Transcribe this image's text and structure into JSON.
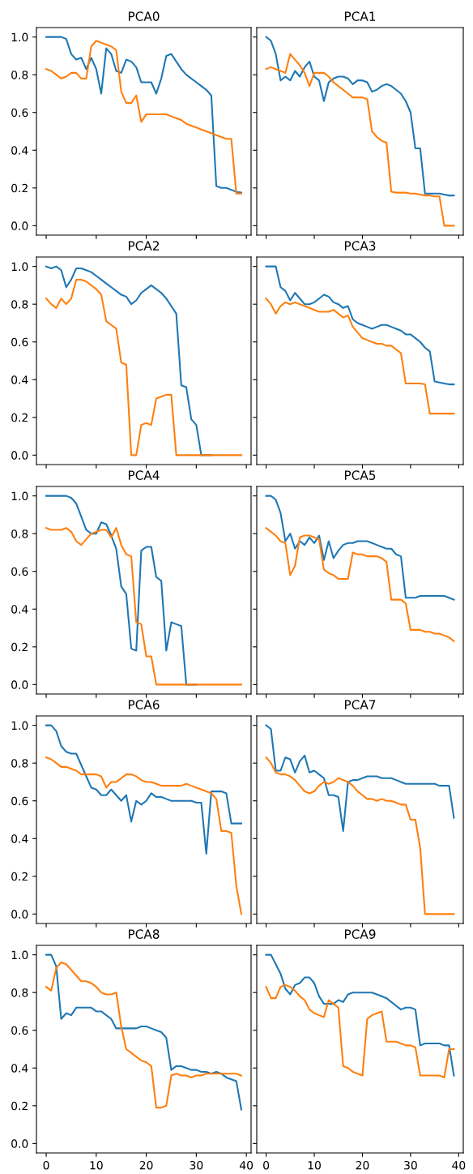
{
  "chart_data": [
    {
      "type": "line",
      "title": "PCA0",
      "xlim": [
        -1.95,
        40.95
      ],
      "ylim": [
        -0.05,
        1.05
      ],
      "xticks": [
        {
          "value": 0,
          "label": null
        },
        {
          "value": 10,
          "label": null
        },
        {
          "value": 20,
          "label": null
        },
        {
          "value": 30,
          "label": null
        },
        {
          "value": 40,
          "label": null
        }
      ],
      "yticks": [
        {
          "value": 0,
          "label": "0.0"
        },
        {
          "value": 0.2,
          "label": "0.2"
        },
        {
          "value": 0.4,
          "label": "0.4"
        },
        {
          "value": 0.6,
          "label": "0.6"
        },
        {
          "value": 0.8,
          "label": "0.8"
        },
        {
          "value": 1.0,
          "label": "1.0"
        }
      ],
      "tick_labels": "y",
      "grid": false,
      "x": [
        0,
        1,
        2,
        3,
        4,
        5,
        6,
        7,
        8,
        9,
        10,
        11,
        12,
        13,
        14,
        15,
        16,
        17,
        18,
        19,
        20,
        21,
        22,
        23,
        24,
        25,
        26,
        27,
        28,
        29,
        30,
        31,
        32,
        33,
        34,
        35,
        36,
        37,
        38,
        39
      ],
      "series": [
        {
          "color": "#1f77b4",
          "values": [
            1.0,
            1.0,
            1.0,
            1.0,
            0.99,
            0.91,
            0.88,
            0.89,
            0.83,
            0.89,
            0.83,
            0.7,
            0.94,
            0.91,
            0.82,
            0.81,
            0.88,
            0.87,
            0.84,
            0.76,
            0.76,
            0.76,
            0.7,
            0.78,
            0.9,
            0.91,
            0.87,
            0.83,
            0.8,
            0.78,
            0.76,
            0.74,
            0.72,
            0.69,
            0.21,
            0.2,
            0.2,
            0.19,
            0.18,
            0.175
          ]
        },
        {
          "color": "#ff7f0e",
          "values": [
            0.83,
            0.82,
            0.8,
            0.78,
            0.79,
            0.81,
            0.81,
            0.78,
            0.78,
            0.95,
            0.98,
            0.97,
            0.96,
            0.95,
            0.93,
            0.71,
            0.65,
            0.65,
            0.69,
            0.55,
            0.59,
            0.59,
            0.59,
            0.59,
            0.59,
            0.58,
            0.57,
            0.56,
            0.54,
            0.53,
            0.52,
            0.51,
            0.5,
            0.49,
            0.48,
            0.47,
            0.46,
            0.46,
            0.17,
            0.17
          ]
        }
      ]
    },
    {
      "type": "line",
      "title": "PCA1",
      "xlim": [
        -1.95,
        40.95
      ],
      "ylim": [
        -0.05,
        1.05
      ],
      "xticks": [
        {
          "value": 0,
          "label": null
        },
        {
          "value": 10,
          "label": null
        },
        {
          "value": 20,
          "label": null
        },
        {
          "value": 30,
          "label": null
        },
        {
          "value": 40,
          "label": null
        }
      ],
      "yticks": [
        {
          "value": 0,
          "label": null
        },
        {
          "value": 0.2,
          "label": null
        },
        {
          "value": 0.4,
          "label": null
        },
        {
          "value": 0.6,
          "label": null
        },
        {
          "value": 0.8,
          "label": null
        },
        {
          "value": 1.0,
          "label": null
        }
      ],
      "tick_labels": false,
      "grid": false,
      "x": [
        0,
        1,
        2,
        3,
        4,
        5,
        6,
        7,
        8,
        9,
        10,
        11,
        12,
        13,
        14,
        15,
        16,
        17,
        18,
        19,
        20,
        21,
        22,
        23,
        24,
        25,
        26,
        27,
        28,
        29,
        30,
        31,
        32,
        33,
        34,
        35,
        36,
        37,
        38,
        39
      ],
      "series": [
        {
          "color": "#1f77b4",
          "values": [
            1.0,
            0.98,
            0.91,
            0.77,
            0.79,
            0.77,
            0.82,
            0.79,
            0.84,
            0.87,
            0.79,
            0.77,
            0.66,
            0.76,
            0.78,
            0.79,
            0.79,
            0.78,
            0.75,
            0.77,
            0.77,
            0.76,
            0.71,
            0.72,
            0.74,
            0.75,
            0.74,
            0.72,
            0.7,
            0.66,
            0.6,
            0.41,
            0.41,
            0.17,
            0.17,
            0.17,
            0.17,
            0.165,
            0.16,
            0.16
          ]
        },
        {
          "color": "#ff7f0e",
          "values": [
            0.83,
            0.84,
            0.83,
            0.82,
            0.81,
            0.91,
            0.88,
            0.85,
            0.81,
            0.74,
            0.81,
            0.81,
            0.81,
            0.79,
            0.76,
            0.74,
            0.72,
            0.7,
            0.68,
            0.68,
            0.68,
            0.67,
            0.5,
            0.47,
            0.45,
            0.44,
            0.18,
            0.175,
            0.175,
            0.175,
            0.17,
            0.17,
            0.165,
            0.16,
            0.16,
            0.155,
            0.155,
            0.0,
            0.0,
            0.0
          ]
        }
      ]
    },
    {
      "type": "line",
      "title": "PCA2",
      "xlim": [
        -1.95,
        40.95
      ],
      "ylim": [
        -0.05,
        1.05
      ],
      "xticks": [
        {
          "value": 0,
          "label": null
        },
        {
          "value": 10,
          "label": null
        },
        {
          "value": 20,
          "label": null
        },
        {
          "value": 30,
          "label": null
        },
        {
          "value": 40,
          "label": null
        }
      ],
      "yticks": [
        {
          "value": 0,
          "label": "0.0"
        },
        {
          "value": 0.2,
          "label": "0.2"
        },
        {
          "value": 0.4,
          "label": "0.4"
        },
        {
          "value": 0.6,
          "label": "0.6"
        },
        {
          "value": 0.8,
          "label": "0.8"
        },
        {
          "value": 1.0,
          "label": "1.0"
        }
      ],
      "tick_labels": "y",
      "grid": false,
      "x": [
        0,
        1,
        2,
        3,
        4,
        5,
        6,
        7,
        8,
        9,
        10,
        11,
        12,
        13,
        14,
        15,
        16,
        17,
        18,
        19,
        20,
        21,
        22,
        23,
        24,
        25,
        26,
        27,
        28,
        29,
        30,
        31,
        32,
        33,
        34,
        35,
        36,
        37,
        38,
        39
      ],
      "series": [
        {
          "color": "#1f77b4",
          "values": [
            1.0,
            0.99,
            1.0,
            0.98,
            0.89,
            0.93,
            0.99,
            0.99,
            0.98,
            0.97,
            0.95,
            0.93,
            0.91,
            0.89,
            0.87,
            0.85,
            0.84,
            0.8,
            0.82,
            0.86,
            0.88,
            0.9,
            0.88,
            0.86,
            0.83,
            0.79,
            0.75,
            0.37,
            0.36,
            0.19,
            0.16,
            0.0,
            0.0,
            0.0,
            null,
            null,
            null,
            null,
            null,
            null
          ]
        },
        {
          "color": "#ff7f0e",
          "values": [
            0.83,
            0.8,
            0.78,
            0.83,
            0.8,
            0.83,
            0.93,
            0.93,
            0.92,
            0.9,
            0.88,
            0.85,
            0.71,
            0.69,
            0.67,
            0.49,
            0.48,
            0.0,
            0.0,
            0.16,
            0.17,
            0.16,
            0.3,
            0.31,
            0.32,
            0.32,
            0.0,
            0.0,
            0.0,
            0.0,
            0.0,
            0.0,
            0.0,
            0.0,
            0.0,
            0.0,
            0.0,
            0.0,
            0.0,
            0.0
          ]
        }
      ]
    },
    {
      "type": "line",
      "title": "PCA3",
      "xlim": [
        -1.95,
        40.95
      ],
      "ylim": [
        -0.05,
        1.05
      ],
      "xticks": [
        {
          "value": 0,
          "label": null
        },
        {
          "value": 10,
          "label": null
        },
        {
          "value": 20,
          "label": null
        },
        {
          "value": 30,
          "label": null
        },
        {
          "value": 40,
          "label": null
        }
      ],
      "yticks": [
        {
          "value": 0,
          "label": null
        },
        {
          "value": 0.2,
          "label": null
        },
        {
          "value": 0.4,
          "label": null
        },
        {
          "value": 0.6,
          "label": null
        },
        {
          "value": 0.8,
          "label": null
        },
        {
          "value": 1.0,
          "label": null
        }
      ],
      "tick_labels": false,
      "grid": false,
      "x": [
        0,
        1,
        2,
        3,
        4,
        5,
        6,
        7,
        8,
        9,
        10,
        11,
        12,
        13,
        14,
        15,
        16,
        17,
        18,
        19,
        20,
        21,
        22,
        23,
        24,
        25,
        26,
        27,
        28,
        29,
        30,
        31,
        32,
        33,
        34,
        35,
        36,
        37,
        38,
        39
      ],
      "series": [
        {
          "color": "#1f77b4",
          "values": [
            1.0,
            1.0,
            1.0,
            0.89,
            0.87,
            0.82,
            0.86,
            0.83,
            0.8,
            0.8,
            0.81,
            0.83,
            0.85,
            0.84,
            0.81,
            0.8,
            0.78,
            0.79,
            0.72,
            0.7,
            0.69,
            0.68,
            0.67,
            0.68,
            0.69,
            0.69,
            0.68,
            0.67,
            0.66,
            0.64,
            0.64,
            0.62,
            0.6,
            0.57,
            0.55,
            0.39,
            0.385,
            0.38,
            0.375,
            0.375
          ]
        },
        {
          "color": "#ff7f0e",
          "values": [
            0.83,
            0.8,
            0.75,
            0.79,
            0.81,
            0.8,
            0.81,
            0.8,
            0.79,
            0.78,
            0.77,
            0.76,
            0.76,
            0.76,
            0.77,
            0.75,
            0.73,
            0.74,
            0.68,
            0.65,
            0.62,
            0.61,
            0.6,
            0.59,
            0.59,
            0.58,
            0.58,
            0.56,
            0.54,
            0.38,
            0.38,
            0.38,
            0.38,
            0.375,
            0.22,
            0.22,
            0.22,
            0.22,
            0.22,
            0.22
          ]
        }
      ]
    },
    {
      "type": "line",
      "title": "PCA4",
      "xlim": [
        -1.95,
        40.95
      ],
      "ylim": [
        -0.05,
        1.05
      ],
      "xticks": [
        {
          "value": 0,
          "label": null
        },
        {
          "value": 10,
          "label": null
        },
        {
          "value": 20,
          "label": null
        },
        {
          "value": 30,
          "label": null
        },
        {
          "value": 40,
          "label": null
        }
      ],
      "yticks": [
        {
          "value": 0,
          "label": "0.0"
        },
        {
          "value": 0.2,
          "label": "0.2"
        },
        {
          "value": 0.4,
          "label": "0.4"
        },
        {
          "value": 0.6,
          "label": "0.6"
        },
        {
          "value": 0.8,
          "label": "0.8"
        },
        {
          "value": 1.0,
          "label": "1.0"
        }
      ],
      "tick_labels": "y",
      "grid": false,
      "x": [
        0,
        1,
        2,
        3,
        4,
        5,
        6,
        7,
        8,
        9,
        10,
        11,
        12,
        13,
        14,
        15,
        16,
        17,
        18,
        19,
        20,
        21,
        22,
        23,
        24,
        25,
        26,
        27,
        28,
        29,
        30,
        31,
        32,
        33,
        34,
        35,
        36,
        37,
        38,
        39
      ],
      "series": [
        {
          "color": "#1f77b4",
          "values": [
            1.0,
            1.0,
            1.0,
            1.0,
            1.0,
            0.99,
            0.96,
            0.89,
            0.82,
            0.8,
            0.8,
            0.86,
            0.85,
            0.79,
            0.72,
            0.52,
            0.48,
            0.19,
            0.18,
            0.71,
            0.73,
            0.73,
            0.57,
            0.55,
            0.18,
            0.33,
            0.32,
            0.31,
            0.0,
            0.0,
            0.0,
            null,
            null,
            null,
            null,
            null,
            null,
            null,
            null,
            null
          ]
        },
        {
          "color": "#ff7f0e",
          "values": [
            0.83,
            0.82,
            0.82,
            0.82,
            0.83,
            0.81,
            0.76,
            0.74,
            0.77,
            0.8,
            0.81,
            0.82,
            0.82,
            0.78,
            0.83,
            0.74,
            0.69,
            0.68,
            0.33,
            0.32,
            0.15,
            0.15,
            0.0,
            0.0,
            0.0,
            0.0,
            0.0,
            0.0,
            0.0,
            0.0,
            0.0,
            0.0,
            0.0,
            0.0,
            0.0,
            0.0,
            0.0,
            0.0,
            0.0,
            0.0
          ]
        }
      ]
    },
    {
      "type": "line",
      "title": "PCA5",
      "xlim": [
        -1.95,
        40.95
      ],
      "ylim": [
        -0.05,
        1.05
      ],
      "xticks": [
        {
          "value": 0,
          "label": null
        },
        {
          "value": 10,
          "label": null
        },
        {
          "value": 20,
          "label": null
        },
        {
          "value": 30,
          "label": null
        },
        {
          "value": 40,
          "label": null
        }
      ],
      "yticks": [
        {
          "value": 0,
          "label": null
        },
        {
          "value": 0.2,
          "label": null
        },
        {
          "value": 0.4,
          "label": null
        },
        {
          "value": 0.6,
          "label": null
        },
        {
          "value": 0.8,
          "label": null
        },
        {
          "value": 1.0,
          "label": null
        }
      ],
      "tick_labels": false,
      "grid": false,
      "x": [
        0,
        1,
        2,
        3,
        4,
        5,
        6,
        7,
        8,
        9,
        10,
        11,
        12,
        13,
        14,
        15,
        16,
        17,
        18,
        19,
        20,
        21,
        22,
        23,
        24,
        25,
        26,
        27,
        28,
        29,
        30,
        31,
        32,
        33,
        34,
        35,
        36,
        37,
        38,
        39
      ],
      "series": [
        {
          "color": "#1f77b4",
          "values": [
            1.0,
            1.0,
            0.98,
            0.91,
            0.76,
            0.8,
            0.72,
            0.76,
            0.74,
            0.78,
            0.75,
            0.79,
            0.66,
            0.76,
            0.67,
            0.71,
            0.74,
            0.75,
            0.75,
            0.76,
            0.76,
            0.76,
            0.75,
            0.74,
            0.73,
            0.72,
            0.72,
            0.69,
            0.68,
            0.46,
            0.46,
            0.46,
            0.47,
            0.47,
            0.47,
            0.47,
            0.47,
            0.47,
            0.46,
            0.45
          ]
        },
        {
          "color": "#ff7f0e",
          "values": [
            0.83,
            0.81,
            0.79,
            0.76,
            0.75,
            0.58,
            0.63,
            0.78,
            0.79,
            0.79,
            0.78,
            0.77,
            0.61,
            0.59,
            0.58,
            0.56,
            0.56,
            0.56,
            0.7,
            0.69,
            0.69,
            0.68,
            0.68,
            0.68,
            0.67,
            0.65,
            0.45,
            0.45,
            0.45,
            0.43,
            0.29,
            0.29,
            0.29,
            0.28,
            0.28,
            0.27,
            0.27,
            0.26,
            0.25,
            0.23
          ]
        }
      ]
    },
    {
      "type": "line",
      "title": "PCA6",
      "xlim": [
        -1.95,
        40.95
      ],
      "ylim": [
        -0.05,
        1.05
      ],
      "xticks": [
        {
          "value": 0,
          "label": null
        },
        {
          "value": 10,
          "label": null
        },
        {
          "value": 20,
          "label": null
        },
        {
          "value": 30,
          "label": null
        },
        {
          "value": 40,
          "label": null
        }
      ],
      "yticks": [
        {
          "value": 0,
          "label": "0.0"
        },
        {
          "value": 0.2,
          "label": "0.2"
        },
        {
          "value": 0.4,
          "label": "0.4"
        },
        {
          "value": 0.6,
          "label": "0.6"
        },
        {
          "value": 0.8,
          "label": "0.8"
        },
        {
          "value": 1.0,
          "label": "1.0"
        }
      ],
      "tick_labels": "y",
      "grid": false,
      "x": [
        0,
        1,
        2,
        3,
        4,
        5,
        6,
        7,
        8,
        9,
        10,
        11,
        12,
        13,
        14,
        15,
        16,
        17,
        18,
        19,
        20,
        21,
        22,
        23,
        24,
        25,
        26,
        27,
        28,
        29,
        30,
        31,
        32,
        33,
        34,
        35,
        36,
        37,
        38,
        39
      ],
      "series": [
        {
          "color": "#1f77b4",
          "values": [
            1.0,
            1.0,
            0.97,
            0.89,
            0.86,
            0.85,
            0.85,
            0.79,
            0.73,
            0.67,
            0.66,
            0.63,
            0.63,
            0.66,
            0.63,
            0.6,
            0.63,
            0.49,
            0.6,
            0.58,
            0.6,
            0.64,
            0.62,
            0.62,
            0.61,
            0.6,
            0.6,
            0.6,
            0.6,
            0.6,
            0.59,
            0.59,
            0.32,
            0.65,
            0.65,
            0.65,
            0.64,
            0.48,
            0.48,
            0.48
          ]
        },
        {
          "color": "#ff7f0e",
          "values": [
            0.83,
            0.82,
            0.8,
            0.78,
            0.78,
            0.77,
            0.76,
            0.74,
            0.74,
            0.74,
            0.74,
            0.73,
            0.67,
            0.7,
            0.7,
            0.72,
            0.74,
            0.74,
            0.73,
            0.71,
            0.7,
            0.7,
            0.69,
            0.68,
            0.68,
            0.68,
            0.68,
            0.68,
            0.69,
            0.68,
            0.67,
            0.66,
            0.65,
            0.64,
            0.61,
            0.44,
            0.44,
            0.43,
            0.15,
            0.0
          ]
        }
      ]
    },
    {
      "type": "line",
      "title": "PCA7",
      "xlim": [
        -1.95,
        40.95
      ],
      "ylim": [
        -0.05,
        1.05
      ],
      "xticks": [
        {
          "value": 0,
          "label": null
        },
        {
          "value": 10,
          "label": null
        },
        {
          "value": 20,
          "label": null
        },
        {
          "value": 30,
          "label": null
        },
        {
          "value": 40,
          "label": null
        }
      ],
      "yticks": [
        {
          "value": 0,
          "label": null
        },
        {
          "value": 0.2,
          "label": null
        },
        {
          "value": 0.4,
          "label": null
        },
        {
          "value": 0.6,
          "label": null
        },
        {
          "value": 0.8,
          "label": null
        },
        {
          "value": 1.0,
          "label": null
        }
      ],
      "tick_labels": false,
      "grid": false,
      "x": [
        0,
        1,
        2,
        3,
        4,
        5,
        6,
        7,
        8,
        9,
        10,
        11,
        12,
        13,
        14,
        15,
        16,
        17,
        18,
        19,
        20,
        21,
        22,
        23,
        24,
        25,
        26,
        27,
        28,
        29,
        30,
        31,
        32,
        33,
        34,
        35,
        36,
        37,
        38,
        39
      ],
      "series": [
        {
          "color": "#1f77b4",
          "values": [
            1.0,
            0.98,
            0.76,
            0.76,
            0.83,
            0.82,
            0.75,
            0.81,
            0.84,
            0.75,
            0.76,
            0.74,
            0.72,
            0.63,
            0.63,
            0.62,
            0.44,
            0.7,
            0.71,
            0.71,
            0.72,
            0.73,
            0.73,
            0.73,
            0.72,
            0.72,
            0.72,
            0.71,
            0.7,
            0.69,
            0.69,
            0.69,
            0.69,
            0.69,
            0.69,
            0.69,
            0.68,
            0.68,
            0.68,
            0.51
          ]
        },
        {
          "color": "#ff7f0e",
          "values": [
            0.83,
            0.8,
            0.75,
            0.74,
            0.74,
            0.73,
            0.71,
            0.68,
            0.65,
            0.64,
            0.65,
            0.68,
            0.7,
            0.69,
            0.7,
            0.72,
            0.71,
            0.7,
            0.68,
            0.65,
            0.63,
            0.61,
            0.61,
            0.6,
            0.61,
            0.6,
            0.6,
            0.59,
            0.58,
            0.58,
            0.5,
            0.5,
            0.35,
            0.0,
            0.0,
            0.0,
            0.0,
            0.0,
            0.0,
            0.0
          ]
        }
      ]
    },
    {
      "type": "line",
      "title": "PCA8",
      "xlim": [
        -1.95,
        40.95
      ],
      "ylim": [
        -0.05,
        1.05
      ],
      "xticks": [
        0,
        10,
        20,
        30,
        40
      ],
      "yticks": [
        {
          "value": 0,
          "label": "0.0"
        },
        {
          "value": 0.2,
          "label": "0.2"
        },
        {
          "value": 0.4,
          "label": "0.4"
        },
        {
          "value": 0.6,
          "label": "0.6"
        },
        {
          "value": 0.8,
          "label": "0.8"
        },
        {
          "value": 1.0,
          "label": "1.0"
        }
      ],
      "grid": false,
      "x": [
        0,
        1,
        2,
        3,
        4,
        5,
        6,
        7,
        8,
        9,
        10,
        11,
        12,
        13,
        14,
        15,
        16,
        17,
        18,
        19,
        20,
        21,
        22,
        23,
        24,
        25,
        26,
        27,
        28,
        29,
        30,
        31,
        32,
        33,
        34,
        35,
        36,
        37,
        38,
        39
      ],
      "series": [
        {
          "color": "#1f77b4",
          "values": [
            1.0,
            1.0,
            0.94,
            0.66,
            0.69,
            0.68,
            0.72,
            0.72,
            0.72,
            0.72,
            0.7,
            0.7,
            0.68,
            0.66,
            0.61,
            0.61,
            0.61,
            0.61,
            0.61,
            0.62,
            0.62,
            0.61,
            0.6,
            0.59,
            0.56,
            0.39,
            0.41,
            0.41,
            0.4,
            0.39,
            0.39,
            0.38,
            0.38,
            0.37,
            0.38,
            0.37,
            0.35,
            0.34,
            0.33,
            0.18
          ]
        },
        {
          "color": "#ff7f0e",
          "values": [
            0.83,
            0.81,
            0.93,
            0.96,
            0.95,
            0.92,
            0.89,
            0.86,
            0.86,
            0.85,
            0.83,
            0.8,
            0.79,
            0.79,
            0.8,
            0.62,
            0.5,
            0.48,
            0.46,
            0.44,
            0.43,
            0.41,
            0.19,
            0.19,
            0.2,
            0.36,
            0.37,
            0.36,
            0.36,
            0.35,
            0.36,
            0.36,
            0.37,
            0.37,
            0.37,
            0.37,
            0.37,
            0.37,
            0.37,
            0.36
          ]
        }
      ]
    },
    {
      "type": "line",
      "title": "PCA9",
      "xlim": [
        -1.95,
        40.95
      ],
      "ylim": [
        -0.05,
        1.05
      ],
      "xticks": [
        0,
        10,
        20,
        30,
        40
      ],
      "yticks": [
        {
          "value": 0,
          "label": null
        },
        {
          "value": 0.2,
          "label": null
        },
        {
          "value": 0.4,
          "label": null
        },
        {
          "value": 0.6,
          "label": null
        },
        {
          "value": 0.8,
          "label": null
        },
        {
          "value": 1.0,
          "label": null
        }
      ],
      "tick_labels": "x",
      "grid": false,
      "x": [
        0,
        1,
        2,
        3,
        4,
        5,
        6,
        7,
        8,
        9,
        10,
        11,
        12,
        13,
        14,
        15,
        16,
        17,
        18,
        19,
        20,
        21,
        22,
        23,
        24,
        25,
        26,
        27,
        28,
        29,
        30,
        31,
        32,
        33,
        34,
        35,
        36,
        37,
        38,
        39
      ],
      "series": [
        {
          "color": "#1f77b4",
          "values": [
            1.0,
            1.0,
            0.95,
            0.9,
            0.82,
            0.79,
            0.84,
            0.85,
            0.88,
            0.88,
            0.85,
            0.78,
            0.74,
            0.74,
            0.74,
            0.76,
            0.75,
            0.79,
            0.8,
            0.8,
            0.8,
            0.8,
            0.8,
            0.79,
            0.78,
            0.77,
            0.75,
            0.73,
            0.71,
            0.72,
            0.72,
            0.71,
            0.52,
            0.53,
            0.53,
            0.53,
            0.53,
            0.52,
            0.52,
            0.36
          ]
        },
        {
          "color": "#ff7f0e",
          "values": [
            0.83,
            0.77,
            0.77,
            0.83,
            0.84,
            0.83,
            0.81,
            0.78,
            0.76,
            0.71,
            0.69,
            0.68,
            0.67,
            0.76,
            0.74,
            0.72,
            0.41,
            0.4,
            0.38,
            0.37,
            0.36,
            0.66,
            0.68,
            0.69,
            0.7,
            0.54,
            0.54,
            0.54,
            0.53,
            0.52,
            0.52,
            0.51,
            0.36,
            0.36,
            0.36,
            0.36,
            0.36,
            0.35,
            0.5,
            0.5
          ]
        }
      ]
    }
  ]
}
